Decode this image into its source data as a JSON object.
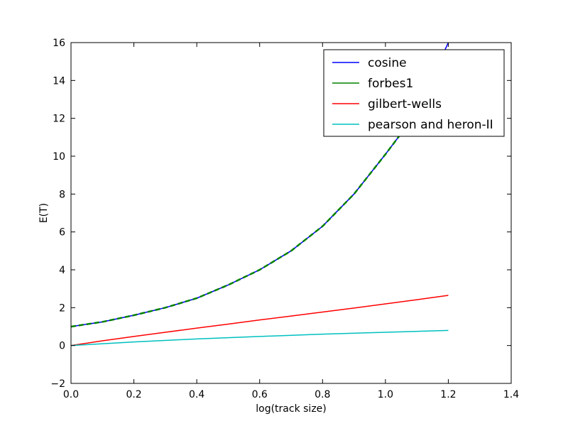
{
  "chart_data": {
    "type": "line",
    "xlabel": "log(track size)",
    "ylabel": "E(T)",
    "xlim": [
      0.0,
      1.4
    ],
    "ylim": [
      -2,
      16
    ],
    "xticks": [
      "0.0",
      "0.2",
      "0.4",
      "0.6",
      "0.8",
      "1.0",
      "1.2",
      "1.4"
    ],
    "yticks": [
      "−2",
      "0",
      "2",
      "4",
      "6",
      "8",
      "10",
      "12",
      "14",
      "16"
    ],
    "grid": false,
    "legend_position": "top-right",
    "series": [
      {
        "name": "cosine",
        "color": "#0000ff",
        "style": "solid",
        "x": [
          0.0,
          0.1,
          0.2,
          0.3,
          0.4,
          0.5,
          0.6,
          0.7,
          0.8,
          0.9,
          1.0,
          1.05,
          1.1,
          1.15,
          1.2
        ],
        "y": [
          1.0,
          1.25,
          1.6,
          2.0,
          2.5,
          3.2,
          4.0,
          5.0,
          6.3,
          8.0,
          10.1,
          11.2,
          12.7,
          14.2,
          16.0
        ]
      },
      {
        "name": "forbes1",
        "color": "#008000",
        "style": "dashed",
        "x": [
          0.0,
          0.1,
          0.2,
          0.3,
          0.4,
          0.5,
          0.6,
          0.7,
          0.8,
          0.9,
          1.0,
          1.05
        ],
        "y": [
          1.0,
          1.25,
          1.6,
          2.0,
          2.5,
          3.2,
          4.0,
          5.0,
          6.3,
          8.0,
          10.1,
          11.2
        ]
      },
      {
        "name": "gilbert-wells",
        "color": "#ff0000",
        "style": "solid",
        "x": [
          0.0,
          0.1,
          0.2,
          0.3,
          0.4,
          0.5,
          0.6,
          0.7,
          0.8,
          0.9,
          1.0,
          1.1,
          1.2
        ],
        "y": [
          0.0,
          0.25,
          0.48,
          0.7,
          0.92,
          1.13,
          1.35,
          1.56,
          1.77,
          1.98,
          2.2,
          2.42,
          2.65
        ]
      },
      {
        "name": "pearson and heron-II",
        "color": "#00bfbf",
        "style": "solid",
        "x": [
          0.0,
          0.2,
          0.4,
          0.6,
          0.8,
          1.0,
          1.2
        ],
        "y": [
          0.0,
          0.19,
          0.35,
          0.48,
          0.6,
          0.7,
          0.8
        ]
      }
    ]
  }
}
